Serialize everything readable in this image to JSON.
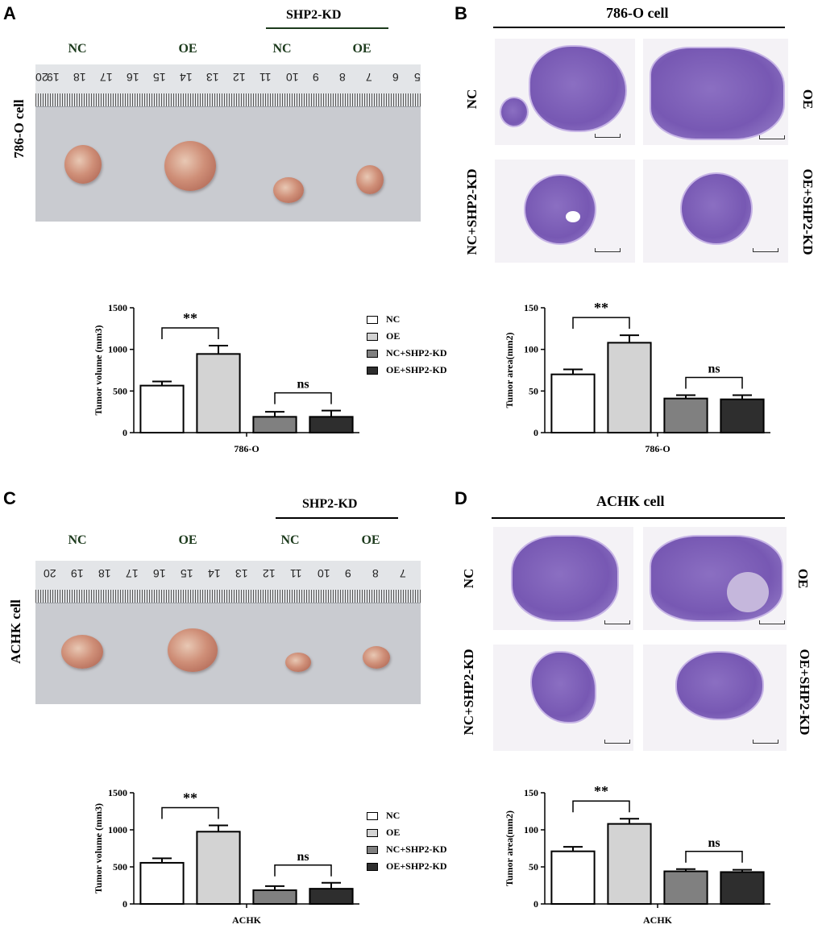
{
  "panels": {
    "A": {
      "letter": "A",
      "shp2_label": "SHP2-KD",
      "groups": [
        "NC",
        "OE",
        "NC",
        "OE"
      ],
      "side_label": "786-O cell",
      "ruler_numbers": [
        "20",
        "19",
        "18",
        "17",
        "16",
        "15",
        "14",
        "13",
        "12",
        "11",
        "10",
        "9",
        "8",
        "7",
        "6",
        "5"
      ]
    },
    "B": {
      "letter": "B",
      "title": "786-O cell",
      "left_labels": [
        "NC",
        "NC+SHP2-KD"
      ],
      "right_labels": [
        "OE",
        "OE+SHP2-KD"
      ]
    },
    "C": {
      "letter": "C",
      "shp2_label": "SHP2-KD",
      "groups": [
        "NC",
        "OE",
        "NC",
        "OE"
      ],
      "side_label": "ACHK cell",
      "ruler_numbers": [
        "20",
        "19",
        "18",
        "17",
        "16",
        "15",
        "14",
        "13",
        "12",
        "11",
        "10",
        "9",
        "8",
        "7"
      ]
    },
    "D": {
      "letter": "D",
      "title": "ACHK cell",
      "left_labels": [
        "NC",
        "NC+SHP2-KD"
      ],
      "right_labels": [
        "OE",
        "OE+SHP2-KD"
      ]
    }
  },
  "legend": {
    "items": [
      {
        "label": "NC",
        "color": "#ffffff"
      },
      {
        "label": "OE",
        "color": "#d3d3d3"
      },
      {
        "label": "NC+SHP2-KD",
        "color": "#808080"
      },
      {
        "label": "OE+SHP2-KD",
        "color": "#2e2e2e"
      }
    ]
  },
  "chart_data": [
    {
      "type": "bar",
      "id": "A-volume",
      "categories": [
        "NC",
        "OE",
        "NC+SHP2-KD",
        "OE+SHP2-KD"
      ],
      "values": [
        565,
        945,
        190,
        190
      ],
      "errors": [
        50,
        100,
        60,
        75
      ],
      "colors": [
        "#ffffff",
        "#d3d3d3",
        "#808080",
        "#2e2e2e"
      ],
      "ylabel": "Tumor volume (mm3)",
      "xlabel": "786-O",
      "ylim": [
        0,
        1500
      ],
      "yticks": [
        0,
        500,
        1000,
        1500
      ],
      "significance": [
        {
          "between": [
            0,
            1
          ],
          "label": "**"
        },
        {
          "between": [
            2,
            3
          ],
          "label": "ns"
        }
      ]
    },
    {
      "type": "bar",
      "id": "B-area",
      "categories": [
        "NC",
        "OE",
        "NC+SHP2-KD",
        "OE+SHP2-KD"
      ],
      "values": [
        70,
        108,
        41,
        40
      ],
      "errors": [
        6,
        9,
        4,
        5
      ],
      "colors": [
        "#ffffff",
        "#d3d3d3",
        "#808080",
        "#2e2e2e"
      ],
      "ylabel": "Tumor area(mm2)",
      "xlabel": "786-O",
      "ylim": [
        0,
        150
      ],
      "yticks": [
        0,
        50,
        100,
        150
      ],
      "significance": [
        {
          "between": [
            0,
            1
          ],
          "label": "**"
        },
        {
          "between": [
            2,
            3
          ],
          "label": "ns"
        }
      ]
    },
    {
      "type": "bar",
      "id": "C-volume",
      "categories": [
        "NC",
        "OE",
        "NC+SHP2-KD",
        "OE+SHP2-KD"
      ],
      "values": [
        555,
        975,
        185,
        205
      ],
      "errors": [
        60,
        85,
        55,
        80
      ],
      "colors": [
        "#ffffff",
        "#d3d3d3",
        "#808080",
        "#2e2e2e"
      ],
      "ylabel": "Tumor volume (mm3)",
      "xlabel": "ACHK",
      "ylim": [
        0,
        1500
      ],
      "yticks": [
        0,
        500,
        1000,
        1500
      ],
      "significance": [
        {
          "between": [
            0,
            1
          ],
          "label": "**"
        },
        {
          "between": [
            2,
            3
          ],
          "label": "ns"
        }
      ]
    },
    {
      "type": "bar",
      "id": "D-area",
      "categories": [
        "NC",
        "OE",
        "NC+SHP2-KD",
        "OE+SHP2-KD"
      ],
      "values": [
        71,
        108,
        44,
        43
      ],
      "errors": [
        6,
        7,
        3,
        3
      ],
      "colors": [
        "#ffffff",
        "#d3d3d3",
        "#808080",
        "#2e2e2e"
      ],
      "ylabel": "Tumor area(mm2)",
      "xlabel": "ACHK",
      "ylim": [
        0,
        150
      ],
      "yticks": [
        0,
        50,
        100,
        150
      ],
      "significance": [
        {
          "between": [
            0,
            1
          ],
          "label": "**"
        },
        {
          "between": [
            2,
            3
          ],
          "label": "ns"
        }
      ]
    }
  ]
}
